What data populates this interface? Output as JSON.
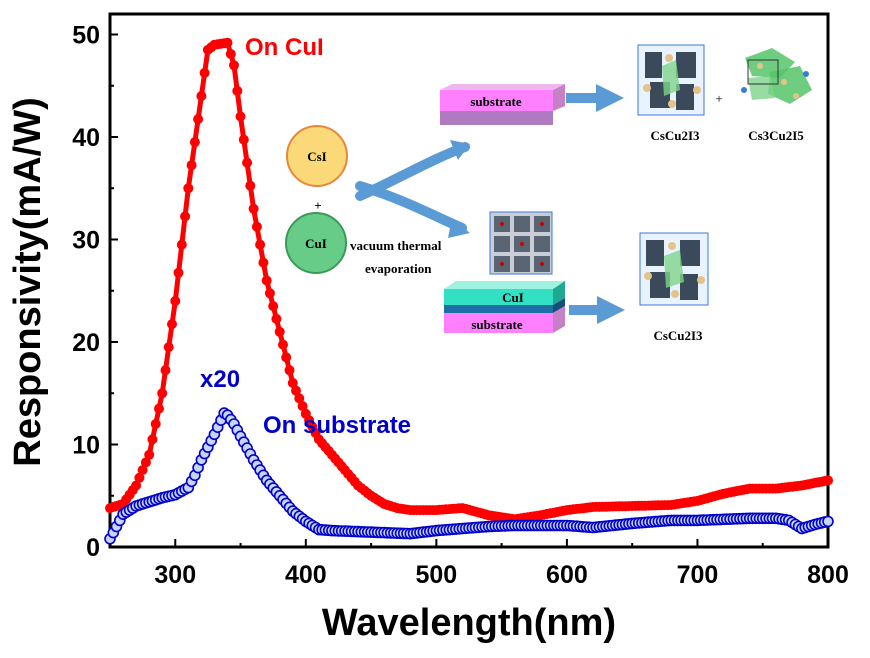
{
  "chart_data": {
    "type": "scatter",
    "xlabel": "Wavelength(nm)",
    "ylabel": "Responsivity(mA/W)",
    "xlim": [
      250,
      800
    ],
    "ylim": [
      0,
      52
    ],
    "x_ticks": [
      300,
      400,
      500,
      600,
      700,
      800
    ],
    "y_ticks": [
      0,
      10,
      20,
      30,
      40,
      50
    ],
    "series": [
      {
        "name": "On CuI",
        "color": "#ff0000",
        "marker": "filled-circle-line",
        "points": [
          [
            250,
            3.8
          ],
          [
            260,
            4.2
          ],
          [
            270,
            6
          ],
          [
            280,
            9
          ],
          [
            290,
            15
          ],
          [
            300,
            24
          ],
          [
            310,
            35
          ],
          [
            320,
            44
          ],
          [
            325,
            48.5
          ],
          [
            330,
            49
          ],
          [
            340,
            49.2
          ],
          [
            345,
            47
          ],
          [
            350,
            42
          ],
          [
            360,
            33
          ],
          [
            370,
            26
          ],
          [
            380,
            21
          ],
          [
            390,
            16
          ],
          [
            400,
            13
          ],
          [
            410,
            10.5
          ],
          [
            420,
            9
          ],
          [
            430,
            7.5
          ],
          [
            440,
            6
          ],
          [
            450,
            5
          ],
          [
            460,
            4.2
          ],
          [
            470,
            3.8
          ],
          [
            480,
            3.6
          ],
          [
            500,
            3.6
          ],
          [
            520,
            3.8
          ],
          [
            540,
            3.1
          ],
          [
            560,
            2.7
          ],
          [
            580,
            3.1
          ],
          [
            600,
            3.6
          ],
          [
            620,
            3.9
          ],
          [
            650,
            4
          ],
          [
            680,
            4.1
          ],
          [
            700,
            4.5
          ],
          [
            720,
            5.2
          ],
          [
            740,
            5.7
          ],
          [
            760,
            5.7
          ],
          [
            780,
            6
          ],
          [
            800,
            6.5
          ]
        ]
      },
      {
        "name": "On substrate",
        "multiplier_label": "x20",
        "color": "#0000cc",
        "marker": "open-circle",
        "points": [
          [
            250,
            0.8
          ],
          [
            255,
            2
          ],
          [
            260,
            3.2
          ],
          [
            270,
            4
          ],
          [
            280,
            4.4
          ],
          [
            290,
            4.8
          ],
          [
            300,
            5.1
          ],
          [
            310,
            5.8
          ],
          [
            315,
            7
          ],
          [
            320,
            8.5
          ],
          [
            330,
            11
          ],
          [
            338,
            13.2
          ],
          [
            345,
            12
          ],
          [
            350,
            10.8
          ],
          [
            360,
            8.5
          ],
          [
            370,
            6.5
          ],
          [
            380,
            5
          ],
          [
            390,
            3.5
          ],
          [
            400,
            2.5
          ],
          [
            410,
            1.7
          ],
          [
            420,
            1.6
          ],
          [
            440,
            1.5
          ],
          [
            460,
            1.4
          ],
          [
            480,
            1.3
          ],
          [
            500,
            1.6
          ],
          [
            520,
            1.8
          ],
          [
            540,
            2
          ],
          [
            560,
            2.1
          ],
          [
            580,
            2.1
          ],
          [
            600,
            2.1
          ],
          [
            620,
            1.9
          ],
          [
            650,
            2.3
          ],
          [
            680,
            2.6
          ],
          [
            700,
            2.6
          ],
          [
            720,
            2.7
          ],
          [
            740,
            2.8
          ],
          [
            760,
            2.8
          ],
          [
            770,
            2.6
          ],
          [
            780,
            1.8
          ],
          [
            790,
            2.2
          ],
          [
            800,
            2.5
          ]
        ]
      }
    ],
    "annotations": {
      "inset_labels": {
        "csi": "CsI",
        "cui": "CuI",
        "plus": "+",
        "plus2": "+",
        "vacuum_line1": "vacuum thermal",
        "vacuum_line2": "evaporation",
        "substrate_top": "substrate",
        "substrate_bottom": "substrate",
        "cui_layer": "CuI",
        "product1": "CsCu2I3",
        "product2": "Cs3Cu2I5",
        "product3": "CsCu2I3"
      }
    },
    "grid": false
  }
}
